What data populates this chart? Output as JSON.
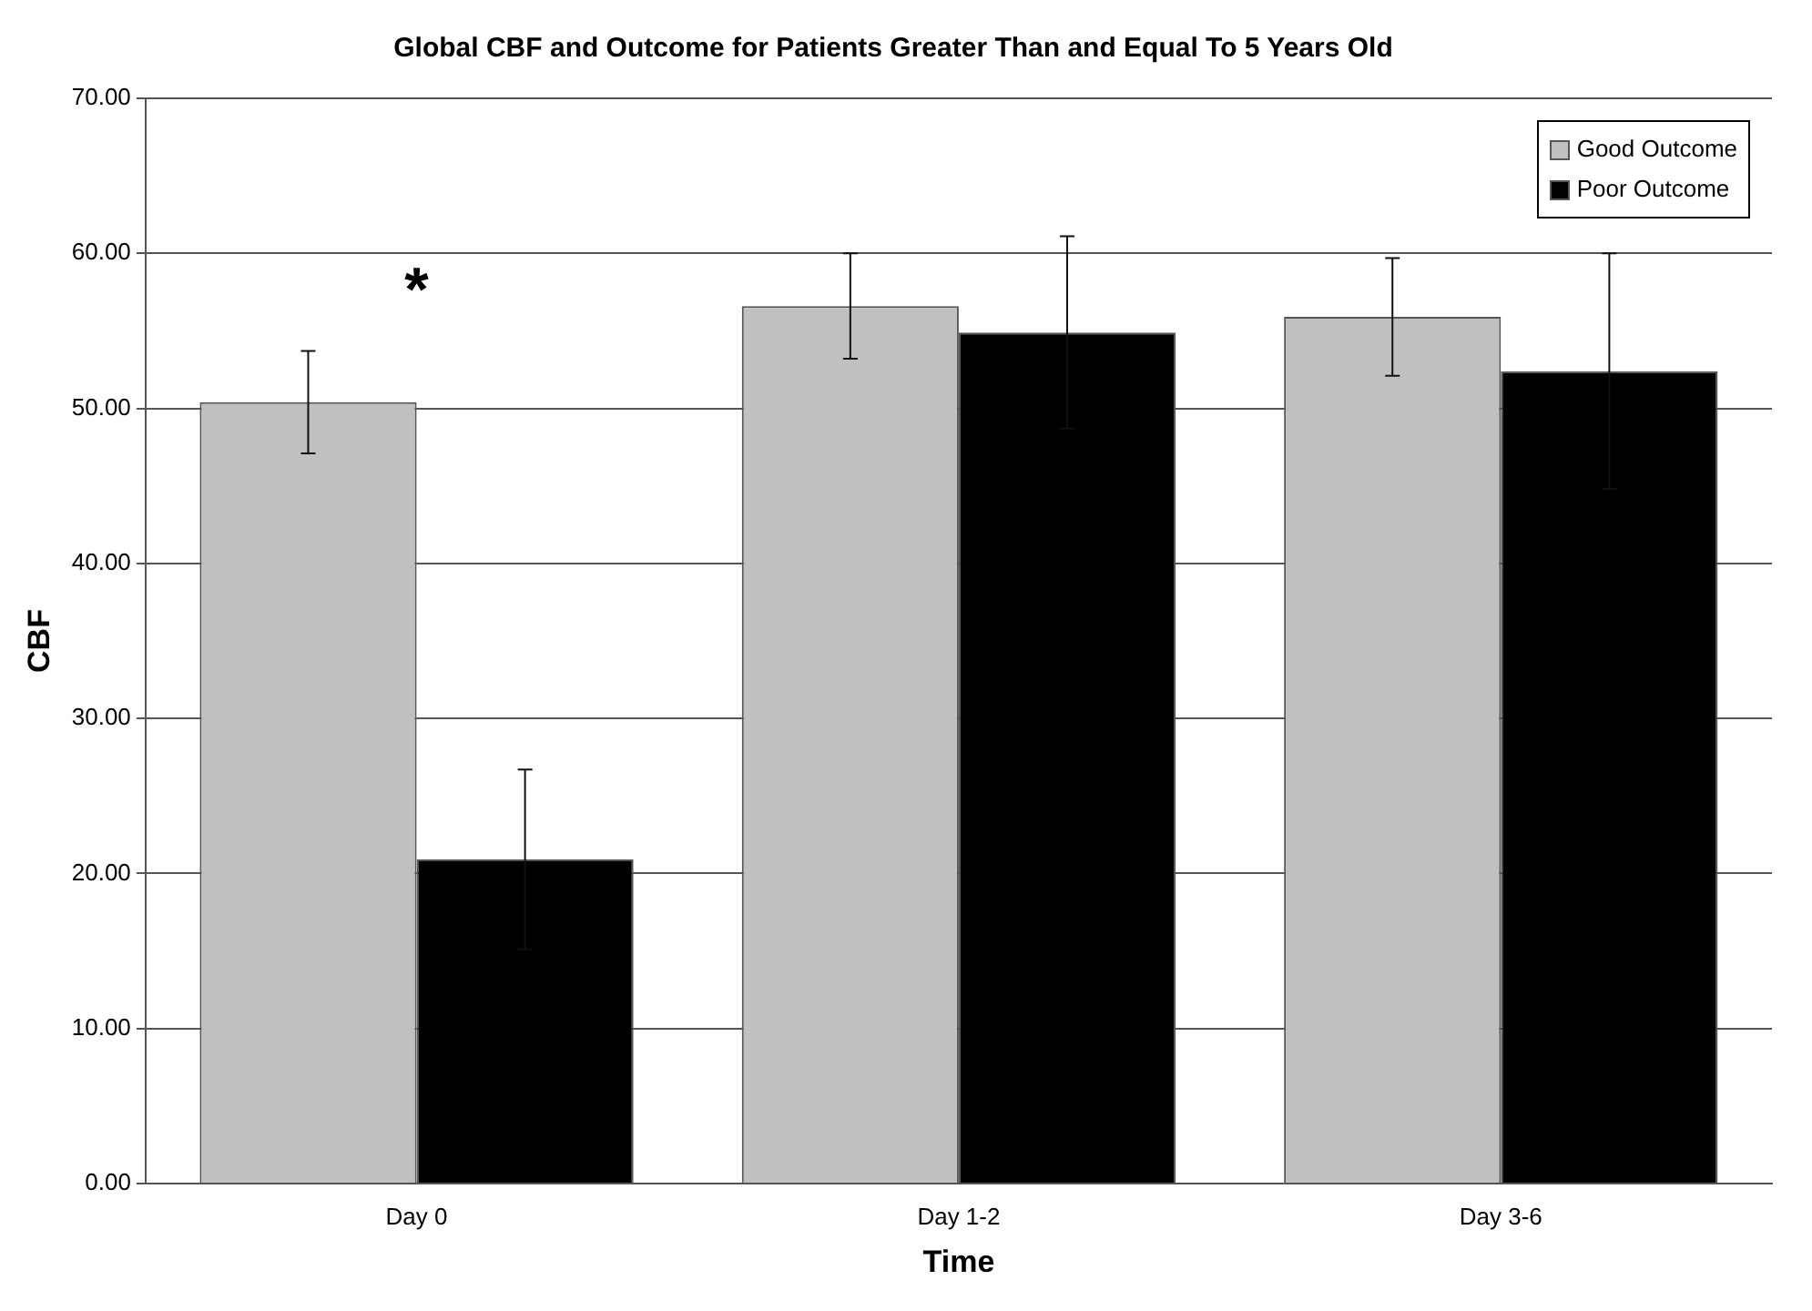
{
  "chart_data": {
    "type": "bar",
    "title": "Global CBF and Outcome for Patients Greater Than and Equal To 5 Years Old",
    "xlabel": "Time",
    "ylabel": "CBF",
    "categories": [
      "Day 0",
      "Day 1-2",
      "Day 3-6"
    ],
    "series": [
      {
        "name": "Good Outcome",
        "color": "#c0c0c0",
        "values": [
          50.4,
          56.6,
          55.9
        ],
        "errors": [
          3.3,
          3.4,
          3.8
        ]
      },
      {
        "name": "Poor Outcome",
        "color": "#000000",
        "values": [
          20.9,
          54.9,
          52.4
        ],
        "errors": [
          5.8,
          6.2,
          7.6
        ]
      }
    ],
    "ylim": [
      0,
      70
    ],
    "yticks": [
      {
        "value": 0,
        "label": "0.00"
      },
      {
        "value": 10,
        "label": "10.00"
      },
      {
        "value": 20,
        "label": "20.00"
      },
      {
        "value": 30,
        "label": "30.00"
      },
      {
        "value": 40,
        "label": "40.00"
      },
      {
        "value": 50,
        "label": "50.00"
      },
      {
        "value": 60,
        "label": "60.00"
      },
      {
        "value": 70,
        "label": "70.00"
      }
    ],
    "grid": "y",
    "legend": "top right",
    "annotations": [
      "*"
    ]
  }
}
